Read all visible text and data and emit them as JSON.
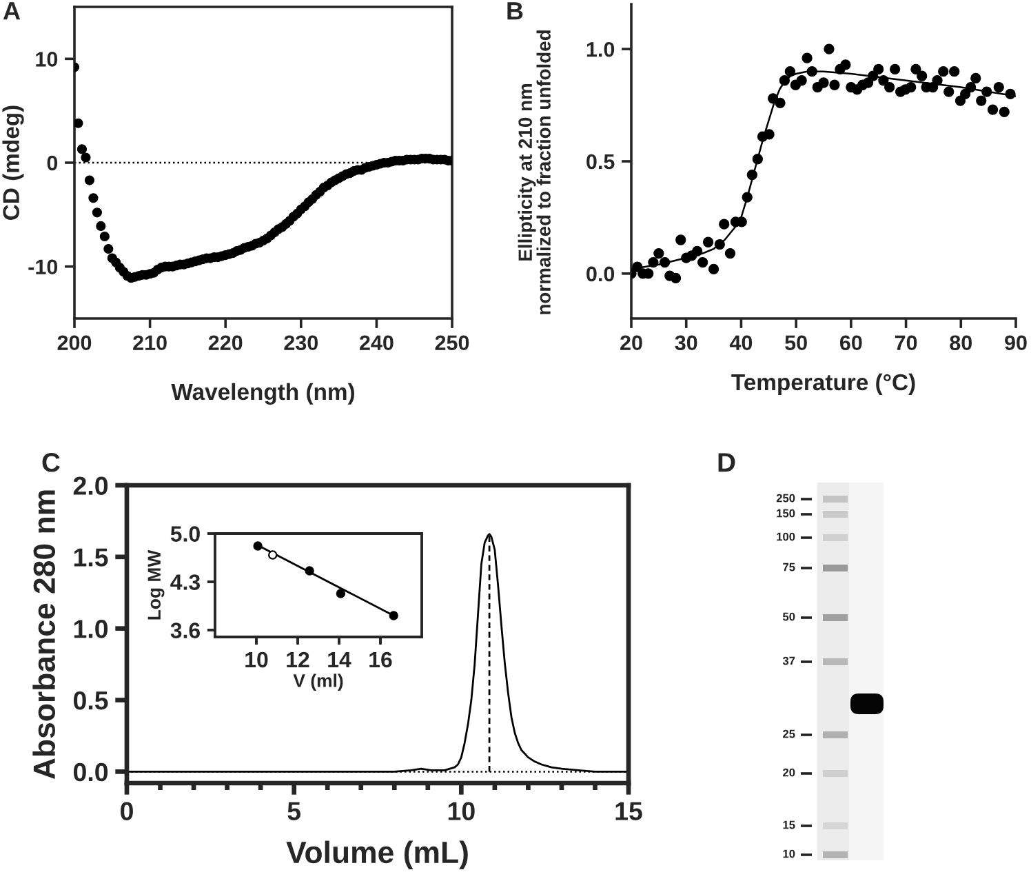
{
  "chart_data": [
    {
      "type": "scatter",
      "title": "A",
      "xlabel": "Wavelength (nm)",
      "ylabel": "CD (mdeg)",
      "marker": "circle",
      "xlim": [
        200,
        250
      ],
      "xticks": [
        200,
        210,
        220,
        230,
        240,
        250
      ],
      "ylim": [
        -15,
        15
      ],
      "yticks": [
        -10,
        0,
        10
      ],
      "ref_lines": [
        {
          "axis": "y",
          "value": 0,
          "line_style": "dotted",
          "color": "#000000"
        }
      ],
      "series": [
        {
          "color": "#000000",
          "x": [
            200,
            200.5,
            201,
            201.5,
            202,
            202.5,
            203,
            203.5,
            204,
            204.5,
            205,
            205.5,
            206,
            206.5,
            207,
            207.5,
            208,
            208.5,
            209,
            209.5,
            210,
            210.5,
            211,
            211.5,
            212,
            212.5,
            213,
            213.5,
            214,
            214.5,
            215,
            215.5,
            216,
            216.5,
            217,
            217.5,
            218,
            218.5,
            219,
            219.5,
            220,
            220.5,
            221,
            221.5,
            222,
            222.5,
            223,
            223.5,
            224,
            224.5,
            225,
            225.5,
            226,
            226.5,
            227,
            227.5,
            228,
            228.5,
            229,
            229.5,
            230,
            230.5,
            231,
            231.5,
            232,
            232.5,
            233,
            233.5,
            234,
            234.5,
            235,
            235.5,
            236,
            236.5,
            237,
            237.5,
            238,
            238.5,
            239,
            239.5,
            240,
            240.5,
            241,
            241.5,
            242,
            242.5,
            243,
            243.5,
            244,
            244.5,
            245,
            245.5,
            246,
            246.5,
            247,
            247.5,
            248,
            248.5,
            249,
            249.5,
            250
          ],
          "values": [
            9.2,
            3.8,
            1.3,
            0.5,
            -1.7,
            -3.4,
            -4.8,
            -6.1,
            -7.1,
            -8.3,
            -9.2,
            -9.6,
            -10.1,
            -10.5,
            -10.9,
            -11.1,
            -11.0,
            -10.9,
            -10.8,
            -10.8,
            -10.7,
            -10.6,
            -10.3,
            -10.1,
            -10.0,
            -10.0,
            -10.0,
            -9.9,
            -9.8,
            -9.8,
            -9.7,
            -9.6,
            -9.5,
            -9.4,
            -9.3,
            -9.2,
            -9.2,
            -9.1,
            -9.1,
            -9.0,
            -8.9,
            -8.8,
            -8.7,
            -8.5,
            -8.4,
            -8.2,
            -8.1,
            -8.0,
            -7.8,
            -7.7,
            -7.5,
            -7.3,
            -7.0,
            -6.7,
            -6.4,
            -6.2,
            -5.9,
            -5.6,
            -5.2,
            -4.9,
            -4.5,
            -4.2,
            -3.8,
            -3.5,
            -3.1,
            -2.8,
            -2.4,
            -2.2,
            -1.9,
            -1.7,
            -1.5,
            -1.3,
            -1.1,
            -1.0,
            -0.8,
            -0.7,
            -0.7,
            -0.5,
            -0.4,
            -0.3,
            -0.2,
            -0.1,
            0.0,
            0.0,
            0.1,
            0.2,
            0.2,
            0.2,
            0.3,
            0.3,
            0.3,
            0.3,
            0.4,
            0.4,
            0.4,
            0.3,
            0.3,
            0.3,
            0.3,
            0.2,
            0.2
          ]
        }
      ]
    },
    {
      "type": "scatter",
      "title": "B",
      "xlabel": "Temperature (°C)",
      "ylabel": "Ellipticity at 210 nm\nnormalized to fraction unfolded",
      "marker": "circle",
      "xlim": [
        20,
        90
      ],
      "xticks": [
        20,
        30,
        40,
        50,
        60,
        70,
        80,
        90
      ],
      "ylim": [
        -0.2,
        1.2
      ],
      "yticks": [
        {
          "value": 0,
          "label": "0.0"
        },
        0.5,
        {
          "value": 1,
          "label": "1.0"
        }
      ],
      "series": [
        {
          "color": "#000000",
          "x": [
            20,
            21.1,
            22.1,
            23.1,
            24,
            25,
            26.1,
            27,
            28.1,
            29,
            30,
            31,
            32,
            33,
            34,
            35,
            36.1,
            36.9,
            38,
            39,
            40.1,
            41.1,
            42,
            43,
            43.9,
            45.1,
            45.8,
            47.1,
            47.9,
            48.9,
            49.9,
            51,
            52,
            52.9,
            53.9,
            55,
            56,
            57,
            58,
            59,
            60,
            61.1,
            62.1,
            63.1,
            64,
            65,
            65.9,
            67,
            68,
            69,
            69.9,
            70.9,
            71.8,
            72.9,
            73.7,
            74.9,
            75.7,
            76.8,
            77.8,
            78.8,
            79.9,
            80.8,
            81.8,
            82.7,
            83.7,
            84.7,
            85.8,
            86.9,
            87.9,
            89
          ],
          "values": [
            0.0,
            0.03,
            0.0,
            0.0,
            0.05,
            0.09,
            0.05,
            -0.01,
            -0.02,
            0.15,
            0.07,
            0.08,
            0.1,
            0.05,
            0.14,
            0.02,
            0.13,
            0.22,
            0.09,
            0.23,
            0.23,
            0.34,
            0.44,
            0.51,
            0.61,
            0.62,
            0.78,
            0.76,
            0.86,
            0.9,
            0.84,
            0.86,
            0.96,
            0.9,
            0.83,
            0.85,
            1.0,
            0.84,
            0.91,
            0.93,
            0.83,
            0.82,
            0.84,
            0.85,
            0.88,
            0.91,
            0.86,
            0.83,
            0.91,
            0.81,
            0.82,
            0.83,
            0.91,
            0.88,
            0.83,
            0.83,
            0.86,
            0.9,
            0.81,
            0.9,
            0.77,
            0.8,
            0.83,
            0.87,
            0.77,
            0.81,
            0.73,
            0.83,
            0.72,
            0.8
          ]
        },
        {
          "type": "line",
          "marker": "none",
          "color": "#000000",
          "x": [
            20,
            25,
            30,
            33,
            35,
            37,
            38,
            39,
            40,
            41,
            42,
            43,
            44,
            45,
            46,
            47,
            48,
            49,
            50,
            52,
            55,
            60,
            70,
            80,
            90
          ],
          "values": [
            0.02,
            0.04,
            0.07,
            0.09,
            0.11,
            0.15,
            0.18,
            0.21,
            0.25,
            0.33,
            0.42,
            0.51,
            0.6,
            0.68,
            0.76,
            0.82,
            0.86,
            0.88,
            0.89,
            0.9,
            0.9,
            0.89,
            0.86,
            0.83,
            0.79
          ]
        }
      ]
    },
    {
      "type": "line",
      "title": "C",
      "xlabel": "Volume (mL)",
      "ylabel": "Absorbance 280 nm",
      "xlim": [
        0,
        15
      ],
      "xticks": [
        0,
        {
          "value": 1,
          "label": null
        },
        {
          "value": 2,
          "label": null
        },
        {
          "value": 3,
          "label": null
        },
        {
          "value": 4,
          "label": null
        },
        5,
        {
          "value": 6,
          "label": null
        },
        {
          "value": 7,
          "label": null
        },
        {
          "value": 8,
          "label": null
        },
        {
          "value": 9,
          "label": null
        },
        10,
        {
          "value": 11,
          "label": null
        },
        {
          "value": 12,
          "label": null
        },
        {
          "value": 13,
          "label": null
        },
        {
          "value": 14,
          "label": null
        },
        15
      ],
      "ylim": [
        -0.08,
        2.0
      ],
      "yticks": [
        {
          "value": 0,
          "label": "0.0"
        },
        0.5,
        {
          "value": 1,
          "label": "1.0"
        },
        1.5,
        {
          "value": 2,
          "label": "2.0"
        }
      ],
      "ref_lines": [
        {
          "axis": "y",
          "value": 0,
          "line_style": "dotted",
          "color": "#000000"
        },
        {
          "axis": "x",
          "value": 10.84,
          "line_style": "dashed",
          "color": "#000000"
        }
      ],
      "series": [
        {
          "color": "#000000",
          "x": [
            0,
            2,
            4,
            6,
            8,
            8.5,
            8.8,
            9.1,
            9.5,
            9.8,
            9.9,
            10.0,
            10.1,
            10.2,
            10.3,
            10.4,
            10.5,
            10.6,
            10.7,
            10.8,
            10.84,
            10.9,
            11.0,
            11.1,
            11.2,
            11.3,
            11.4,
            11.5,
            11.6,
            11.7,
            11.8,
            12.0,
            12.2,
            12.4,
            12.7,
            13.0,
            13.5,
            14,
            15
          ],
          "values": [
            0,
            0,
            0,
            0,
            0.0,
            0.01,
            0.02,
            0.01,
            0.01,
            0.03,
            0.05,
            0.1,
            0.2,
            0.33,
            0.5,
            0.75,
            1.1,
            1.45,
            1.6,
            1.65,
            1.66,
            1.64,
            1.55,
            1.3,
            1.02,
            0.76,
            0.55,
            0.38,
            0.27,
            0.2,
            0.15,
            0.1,
            0.07,
            0.05,
            0.03,
            0.02,
            0.01,
            0,
            0
          ]
        }
      ]
    },
    {
      "type": "scatter",
      "xlabel": "V (ml)",
      "ylabel": "Log MW",
      "marker": "circle",
      "xlim": [
        8,
        18
      ],
      "xticks": [
        10,
        12,
        14,
        16
      ],
      "ylim": [
        3.5,
        5.0
      ],
      "yticks": [
        3.6,
        4.3,
        {
          "value": 5,
          "label": "5.0"
        }
      ],
      "series": [
        {
          "color": "#000000",
          "x": [
            10.07,
            12.57,
            14.08,
            16.64
          ],
          "values": [
            4.82,
            4.46,
            4.13,
            3.81
          ]
        },
        {
          "color": "#ffffff",
          "x": [
            10.79
          ],
          "values": [
            4.69
          ]
        },
        {
          "type": "line",
          "marker": "none",
          "color": "#000000",
          "x": [
            10.07,
            16.64
          ],
          "values": [
            4.83,
            3.81
          ]
        }
      ]
    },
    {
      "type": "other",
      "title": "D",
      "annotations": [
        "250",
        "150",
        "100",
        "75",
        "50",
        "37",
        "25",
        "20",
        "15",
        "10"
      ]
    }
  ]
}
